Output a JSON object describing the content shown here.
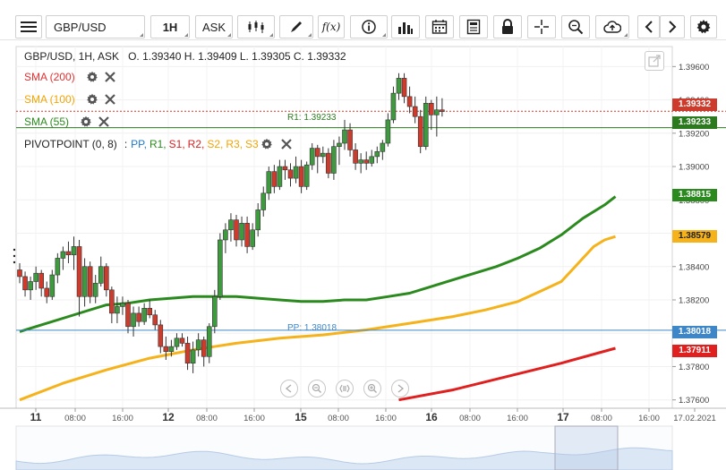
{
  "toolbar": {
    "symbol": "GBP/USD",
    "interval": "1H",
    "price_type": "ASK",
    "fx_label": "f(x)"
  },
  "legend": {
    "instrument": "GBP/USD, 1H, ASK",
    "ohlc": "O. 1.39340 H. 1.39409 L. 1.39305 C. 1.39332",
    "sma200": "SMA (200)",
    "sma100": "SMA (100)",
    "sma55": "SMA (55)",
    "pivot_name": "PIVOTPOINT (0, 8)",
    "pivot_sep": ":",
    "pivot_items": [
      {
        "label": "PP,",
        "color": "#1f78c8"
      },
      {
        "label": "R1,",
        "color": "#2b8a1e"
      },
      {
        "label": "S1,",
        "color": "#d42020"
      },
      {
        "label": "R2,",
        "color": "#d42020"
      },
      {
        "label": "S2,",
        "color": "#f2a400"
      },
      {
        "label": "R3,",
        "color": "#f2a400"
      },
      {
        "label": "S3",
        "color": "#f2a400"
      }
    ],
    "colors": {
      "sma200": "#e03030",
      "sma100": "#f2a400",
      "sma55": "#2b8a1e",
      "pivot": "#222222"
    }
  },
  "lines": {
    "r1_label": "R1: 1.39233",
    "pp_label": "PP: 1.38018"
  },
  "price_tags": {
    "last": "1.39332",
    "r1": "1.39233",
    "sma55": "1.38815",
    "sma100": "1.38579",
    "pp": "1.38018",
    "sma200": "1.37911"
  },
  "chart_data": {
    "type": "candlestick",
    "ylim": [
      1.3755,
      1.3972
    ],
    "y_ticks": [
      "1.39600",
      "1.39400",
      "1.39200",
      "1.39000",
      "1.38800",
      "1.38600",
      "1.38400",
      "1.38200",
      "1.38000",
      "1.37800",
      "1.37600"
    ],
    "y_tick_values": [
      1.396,
      1.394,
      1.392,
      1.39,
      1.388,
      1.386,
      1.384,
      1.382,
      1.38,
      1.378,
      1.376
    ],
    "x_ticks": [
      "11",
      "08:00",
      "16:00",
      "12",
      "08:00",
      "16:00",
      "15",
      "08:00",
      "16:00",
      "16",
      "08:00",
      "16:00",
      "17",
      "08:00",
      "16:00",
      "17.02.2021"
    ],
    "x_tick_bold": [
      true,
      false,
      false,
      true,
      false,
      false,
      true,
      false,
      false,
      true,
      false,
      false,
      true,
      false,
      false,
      false
    ],
    "colors": {
      "up": "#3f9a3f",
      "down": "#cc3b2b",
      "sma55": "#2b8a1e",
      "sma100": "#f5b21a",
      "sma200": "#e01f1f",
      "r1": "#2b7a1e",
      "pp": "#3d86c8",
      "last": "#cc3b2b"
    },
    "last_price": 1.39332,
    "levels": {
      "r1": 1.39233,
      "pp": 1.38018
    },
    "candles": [
      [
        1.3838,
        1.3842,
        1.383,
        1.3834
      ],
      [
        1.3834,
        1.3837,
        1.3822,
        1.3826
      ],
      [
        1.3826,
        1.3834,
        1.382,
        1.3831
      ],
      [
        1.3831,
        1.384,
        1.3826,
        1.3836
      ],
      [
        1.3836,
        1.3838,
        1.3822,
        1.3827
      ],
      [
        1.3827,
        1.3831,
        1.3818,
        1.3822
      ],
      [
        1.3822,
        1.3838,
        1.382,
        1.3835
      ],
      [
        1.3835,
        1.3848,
        1.383,
        1.3845
      ],
      [
        1.3845,
        1.3852,
        1.3838,
        1.3849
      ],
      [
        1.3849,
        1.3855,
        1.3842,
        1.3847
      ],
      [
        1.3847,
        1.3858,
        1.3838,
        1.3852
      ],
      [
        1.3852,
        1.3856,
        1.381,
        1.3822
      ],
      [
        1.3822,
        1.3845,
        1.3816,
        1.384
      ],
      [
        1.384,
        1.3843,
        1.3818,
        1.3822
      ],
      [
        1.3822,
        1.3835,
        1.3818,
        1.383
      ],
      [
        1.383,
        1.3846,
        1.3828,
        1.384
      ],
      [
        1.384,
        1.3842,
        1.3822,
        1.3826
      ],
      [
        1.3826,
        1.3828,
        1.3806,
        1.3812
      ],
      [
        1.3812,
        1.3822,
        1.3806,
        1.3816
      ],
      [
        1.3816,
        1.3822,
        1.3811,
        1.3818
      ],
      [
        1.3818,
        1.382,
        1.38,
        1.3804
      ],
      [
        1.3804,
        1.3816,
        1.3798,
        1.3812
      ],
      [
        1.3812,
        1.3816,
        1.3804,
        1.3807
      ],
      [
        1.3807,
        1.3818,
        1.3805,
        1.3815
      ],
      [
        1.3815,
        1.382,
        1.3809,
        1.3811
      ],
      [
        1.3811,
        1.3814,
        1.3802,
        1.3805
      ],
      [
        1.3805,
        1.3808,
        1.3788,
        1.3792
      ],
      [
        1.3792,
        1.3798,
        1.3784,
        1.3789
      ],
      [
        1.3789,
        1.3796,
        1.3786,
        1.3792
      ],
      [
        1.3792,
        1.38,
        1.379,
        1.3797
      ],
      [
        1.3797,
        1.38,
        1.3792,
        1.3794
      ],
      [
        1.3794,
        1.3798,
        1.3778,
        1.3782
      ],
      [
        1.3782,
        1.3795,
        1.3776,
        1.379
      ],
      [
        1.379,
        1.38,
        1.3786,
        1.3796
      ],
      [
        1.3796,
        1.3798,
        1.378,
        1.3786
      ],
      [
        1.3786,
        1.3806,
        1.3782,
        1.3804
      ],
      [
        1.3804,
        1.3826,
        1.38,
        1.3822
      ],
      [
        1.3822,
        1.386,
        1.382,
        1.3856
      ],
      [
        1.3856,
        1.3866,
        1.3848,
        1.3862
      ],
      [
        1.3862,
        1.3872,
        1.3855,
        1.3868
      ],
      [
        1.3868,
        1.3871,
        1.3852,
        1.3856
      ],
      [
        1.3856,
        1.387,
        1.3852,
        1.3866
      ],
      [
        1.3866,
        1.387,
        1.3848,
        1.3852
      ],
      [
        1.3852,
        1.3866,
        1.385,
        1.3862
      ],
      [
        1.3862,
        1.3878,
        1.3858,
        1.3874
      ],
      [
        1.3874,
        1.3888,
        1.387,
        1.3884
      ],
      [
        1.3884,
        1.39,
        1.388,
        1.3897
      ],
      [
        1.3897,
        1.3901,
        1.3884,
        1.3888
      ],
      [
        1.3888,
        1.3904,
        1.3886,
        1.39
      ],
      [
        1.39,
        1.3904,
        1.3892,
        1.3898
      ],
      [
        1.3898,
        1.3902,
        1.3888,
        1.3893
      ],
      [
        1.3893,
        1.3906,
        1.389,
        1.39
      ],
      [
        1.39,
        1.3904,
        1.3884,
        1.3888
      ],
      [
        1.3888,
        1.3903,
        1.3886,
        1.3901
      ],
      [
        1.3901,
        1.3914,
        1.3898,
        1.3911
      ],
      [
        1.3911,
        1.3913,
        1.3896,
        1.3906
      ],
      [
        1.3906,
        1.3912,
        1.3902,
        1.3908
      ],
      [
        1.3908,
        1.3911,
        1.3893,
        1.3896
      ],
      [
        1.3896,
        1.3916,
        1.3892,
        1.3912
      ],
      [
        1.3912,
        1.3918,
        1.3901,
        1.3914
      ],
      [
        1.3914,
        1.3928,
        1.391,
        1.3922
      ],
      [
        1.3922,
        1.3926,
        1.3906,
        1.391
      ],
      [
        1.391,
        1.3914,
        1.3898,
        1.3902
      ],
      [
        1.3902,
        1.3908,
        1.3896,
        1.3904
      ],
      [
        1.3904,
        1.3909,
        1.3898,
        1.3902
      ],
      [
        1.3902,
        1.391,
        1.39,
        1.3906
      ],
      [
        1.3906,
        1.3912,
        1.3902,
        1.3909
      ],
      [
        1.3909,
        1.3916,
        1.3904,
        1.3914
      ],
      [
        1.3914,
        1.3932,
        1.3912,
        1.3928
      ],
      [
        1.3928,
        1.3948,
        1.3926,
        1.3944
      ],
      [
        1.3944,
        1.3956,
        1.394,
        1.3953
      ],
      [
        1.3953,
        1.3956,
        1.3938,
        1.3942
      ],
      [
        1.3942,
        1.3948,
        1.3932,
        1.3936
      ],
      [
        1.3936,
        1.3942,
        1.3926,
        1.393
      ],
      [
        1.393,
        1.3934,
        1.3908,
        1.3912
      ],
      [
        1.3912,
        1.3942,
        1.391,
        1.3938
      ],
      [
        1.3938,
        1.394,
        1.3922,
        1.3931
      ],
      [
        1.3931,
        1.3942,
        1.3918,
        1.3934
      ],
      [
        1.3934,
        1.3941,
        1.393,
        1.3933
      ]
    ],
    "sma55": [
      1.3801,
      1.3805,
      1.3809,
      1.3813,
      1.3817,
      1.3818,
      1.382,
      1.3821,
      1.3822,
      1.3822,
      1.3822,
      1.3821,
      1.382,
      1.3819,
      1.3819,
      1.382,
      1.382,
      1.3822,
      1.3824,
      1.3828,
      1.3832,
      1.3836,
      1.384,
      1.3845,
      1.3851,
      1.3859,
      1.3869,
      1.3877,
      1.3882
    ],
    "sma55_x": [
      0,
      4,
      8,
      12,
      16,
      20,
      24,
      28,
      32,
      36,
      40,
      44,
      48,
      52,
      56,
      60,
      64,
      68,
      72,
      76,
      80,
      84,
      88,
      92,
      96,
      100,
      104,
      108,
      110
    ],
    "sma100": [
      1.376,
      1.377,
      1.3778,
      1.3785,
      1.379,
      1.3794,
      1.3797,
      1.3799,
      1.3802,
      1.3806,
      1.381,
      1.3814,
      1.3819,
      1.3825,
      1.3831,
      1.3838,
      1.3845,
      1.3852,
      1.3856,
      1.3858
    ],
    "sma100_x": [
      0,
      8,
      16,
      24,
      32,
      40,
      48,
      56,
      64,
      72,
      80,
      86,
      92,
      96,
      100,
      102,
      104,
      106,
      108,
      110
    ],
    "sma200": [
      1.376,
      1.3766,
      1.3774,
      1.3782,
      1.3791
    ],
    "sma200_x": [
      70,
      80,
      90,
      100,
      110
    ]
  }
}
